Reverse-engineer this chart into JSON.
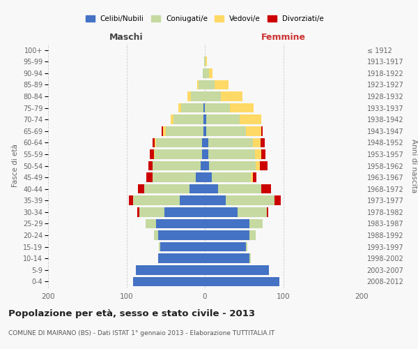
{
  "age_groups": [
    "0-4",
    "5-9",
    "10-14",
    "15-19",
    "20-24",
    "25-29",
    "30-34",
    "35-39",
    "40-44",
    "45-49",
    "50-54",
    "55-59",
    "60-64",
    "65-69",
    "70-74",
    "75-79",
    "80-84",
    "85-89",
    "90-94",
    "95-99",
    "100+"
  ],
  "birth_years": [
    "2008-2012",
    "2003-2007",
    "1998-2002",
    "1993-1997",
    "1988-1992",
    "1983-1987",
    "1978-1982",
    "1973-1977",
    "1968-1972",
    "1963-1967",
    "1958-1962",
    "1953-1957",
    "1948-1952",
    "1943-1947",
    "1938-1942",
    "1933-1937",
    "1928-1932",
    "1923-1927",
    "1918-1922",
    "1913-1917",
    "≤ 1912"
  ],
  "males": {
    "celibe": [
      92,
      88,
      60,
      57,
      60,
      62,
      52,
      32,
      20,
      12,
      5,
      4,
      4,
      2,
      2,
      2,
      0,
      0,
      0,
      0,
      0
    ],
    "coniugato": [
      0,
      0,
      0,
      2,
      5,
      14,
      32,
      60,
      57,
      55,
      62,
      60,
      58,
      48,
      38,
      28,
      18,
      8,
      3,
      1,
      0
    ],
    "vedovo": [
      0,
      0,
      0,
      0,
      0,
      0,
      0,
      0,
      0,
      0,
      0,
      1,
      2,
      3,
      4,
      4,
      4,
      2,
      0,
      0,
      0
    ],
    "divorziato": [
      0,
      0,
      0,
      0,
      0,
      0,
      2,
      5,
      8,
      8,
      5,
      5,
      3,
      2,
      0,
      0,
      0,
      0,
      0,
      0,
      0
    ]
  },
  "females": {
    "nubile": [
      95,
      82,
      57,
      52,
      57,
      57,
      42,
      27,
      17,
      9,
      5,
      4,
      4,
      2,
      2,
      0,
      0,
      0,
      0,
      0,
      0
    ],
    "coniugata": [
      0,
      0,
      2,
      2,
      8,
      17,
      37,
      62,
      55,
      50,
      60,
      60,
      57,
      50,
      42,
      32,
      20,
      12,
      5,
      1,
      0
    ],
    "vedova": [
      0,
      0,
      0,
      0,
      0,
      0,
      0,
      0,
      0,
      2,
      5,
      8,
      10,
      20,
      28,
      30,
      28,
      18,
      5,
      2,
      0
    ],
    "divorziata": [
      0,
      0,
      0,
      0,
      0,
      0,
      2,
      8,
      12,
      5,
      10,
      5,
      5,
      2,
      0,
      0,
      0,
      0,
      0,
      0,
      0
    ]
  },
  "color_celibe": "#4472c4",
  "color_coniugato": "#c5d9a0",
  "color_vedovo": "#ffd966",
  "color_divorziato": "#cc0000",
  "title": "Popolazione per età, sesso e stato civile - 2013",
  "subtitle": "COMUNE DI MAIRANO (BS) - Dati ISTAT 1° gennaio 2013 - Elaborazione TUTTITALIA.IT",
  "xlabel_left": "Maschi",
  "xlabel_right": "Femmine",
  "ylabel_left": "Fasce di età",
  "ylabel_right": "Anni di nascita",
  "xlim": 200,
  "background_color": "#f8f8f8",
  "grid_color": "#cccccc"
}
